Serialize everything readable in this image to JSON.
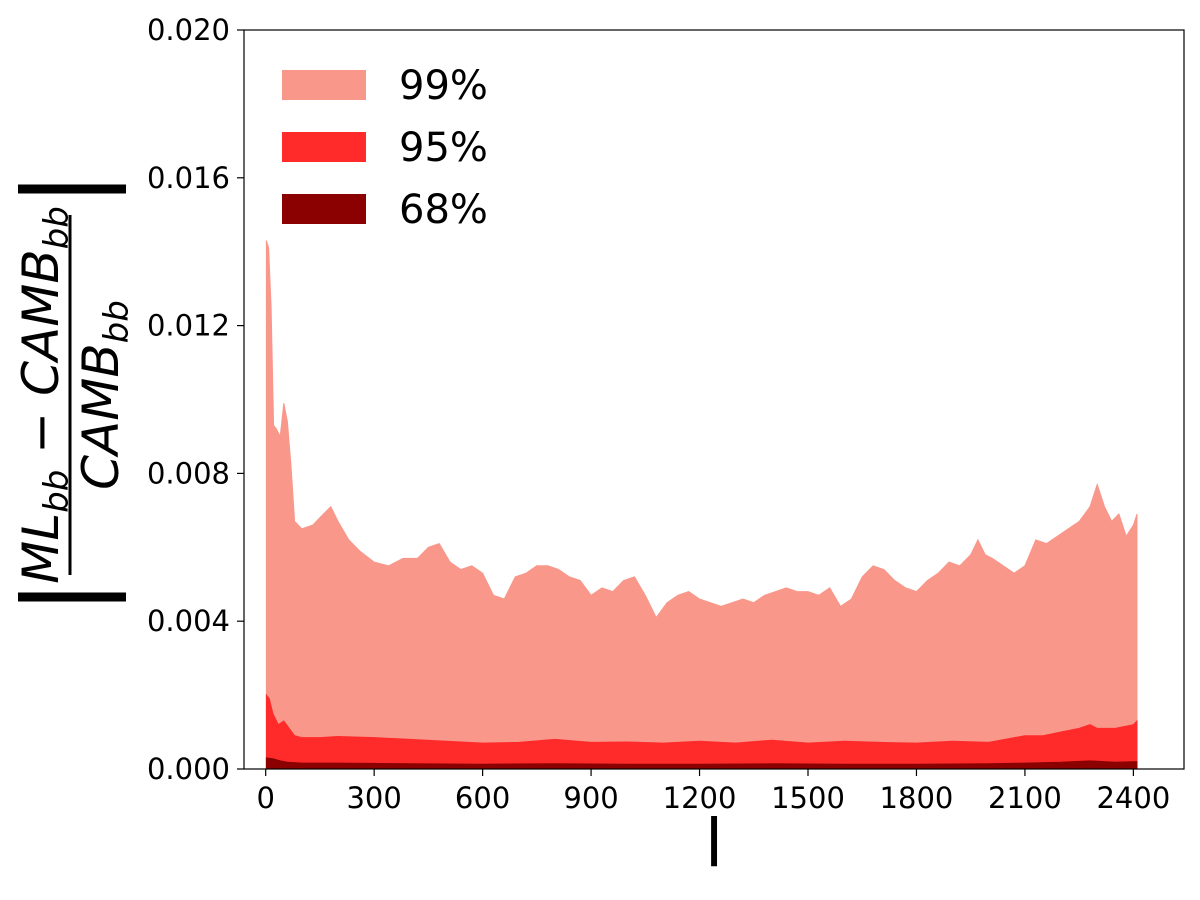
{
  "chart_data": {
    "type": "area",
    "xlabel": "l",
    "ylabel": {
      "numerator": "ML",
      "numerator_sub": "bb",
      "minus": "−",
      "numerator2": "CAMB",
      "numerator2_sub": "bb",
      "denominator": "CAMB",
      "denominator_sub": "bb"
    },
    "xlim": [
      -60,
      2540
    ],
    "ylim": [
      0,
      0.02
    ],
    "xticks": [
      0,
      300,
      600,
      900,
      1200,
      1500,
      1800,
      2100,
      2400
    ],
    "xtick_labels": [
      "0",
      "300",
      "600",
      "900",
      "1200",
      "1500",
      "1800",
      "2100",
      "2400"
    ],
    "yticks": [
      0.0,
      0.004,
      0.008,
      0.012,
      0.016,
      0.02
    ],
    "ytick_labels": [
      "0.000",
      "0.004",
      "0.008",
      "0.012",
      "0.016",
      "0.020"
    ],
    "grid": false,
    "legend_position": "upper-left",
    "series": [
      {
        "name": "99%",
        "color": "#f8978a",
        "x": [
          2,
          8,
          15,
          22,
          30,
          40,
          50,
          60,
          70,
          80,
          100,
          130,
          160,
          180,
          200,
          230,
          260,
          300,
          340,
          380,
          420,
          450,
          480,
          510,
          540,
          570,
          600,
          630,
          660,
          690,
          720,
          750,
          780,
          810,
          840,
          870,
          900,
          930,
          960,
          990,
          1020,
          1050,
          1080,
          1110,
          1140,
          1170,
          1200,
          1230,
          1260,
          1290,
          1320,
          1350,
          1380,
          1410,
          1440,
          1470,
          1500,
          1530,
          1560,
          1590,
          1620,
          1650,
          1680,
          1710,
          1740,
          1770,
          1800,
          1830,
          1860,
          1890,
          1920,
          1950,
          1970,
          1990,
          2010,
          2040,
          2070,
          2100,
          2130,
          2160,
          2190,
          2220,
          2250,
          2280,
          2300,
          2320,
          2340,
          2360,
          2380,
          2400,
          2410
        ],
        "y": [
          0.0143,
          0.0141,
          0.0125,
          0.0093,
          0.0092,
          0.009,
          0.0099,
          0.0094,
          0.0082,
          0.0067,
          0.0065,
          0.0066,
          0.0069,
          0.0071,
          0.0067,
          0.0062,
          0.0059,
          0.0056,
          0.0055,
          0.0057,
          0.0057,
          0.006,
          0.0061,
          0.0056,
          0.0054,
          0.0055,
          0.0053,
          0.0047,
          0.0046,
          0.0052,
          0.0053,
          0.0055,
          0.0055,
          0.0054,
          0.0052,
          0.0051,
          0.0047,
          0.0049,
          0.0048,
          0.0051,
          0.0052,
          0.0047,
          0.0041,
          0.0045,
          0.0047,
          0.0048,
          0.0046,
          0.0045,
          0.0044,
          0.0045,
          0.0046,
          0.0045,
          0.0047,
          0.0048,
          0.0049,
          0.0048,
          0.0048,
          0.0047,
          0.0049,
          0.0044,
          0.0046,
          0.0052,
          0.0055,
          0.0054,
          0.0051,
          0.0049,
          0.0048,
          0.0051,
          0.0053,
          0.0056,
          0.0055,
          0.0058,
          0.0062,
          0.0058,
          0.0057,
          0.0055,
          0.0053,
          0.0055,
          0.0062,
          0.0061,
          0.0063,
          0.0065,
          0.0067,
          0.0071,
          0.0077,
          0.0071,
          0.0067,
          0.0069,
          0.0063,
          0.0066,
          0.0069
        ]
      },
      {
        "name": "95%",
        "color": "#ff2a2a",
        "x": [
          2,
          10,
          20,
          35,
          50,
          65,
          80,
          100,
          150,
          200,
          300,
          400,
          500,
          600,
          700,
          800,
          900,
          1000,
          1100,
          1200,
          1300,
          1400,
          1500,
          1600,
          1700,
          1800,
          1900,
          2000,
          2100,
          2150,
          2200,
          2250,
          2280,
          2300,
          2350,
          2400,
          2410
        ],
        "y": [
          0.002,
          0.0019,
          0.0015,
          0.0012,
          0.0013,
          0.0011,
          0.0009,
          0.00085,
          0.00085,
          0.00088,
          0.00085,
          0.0008,
          0.00075,
          0.0007,
          0.00072,
          0.0008,
          0.00072,
          0.00073,
          0.0007,
          0.00075,
          0.0007,
          0.00078,
          0.0007,
          0.00075,
          0.00072,
          0.0007,
          0.00075,
          0.00072,
          0.0009,
          0.0009,
          0.001,
          0.0011,
          0.0012,
          0.0011,
          0.0011,
          0.0012,
          0.0013
        ]
      },
      {
        "name": "68%",
        "color": "#8b0000",
        "x": [
          2,
          20,
          40,
          60,
          100,
          200,
          400,
          600,
          800,
          1000,
          1200,
          1400,
          1600,
          1800,
          2000,
          2100,
          2200,
          2280,
          2350,
          2410
        ],
        "y": [
          0.0003,
          0.00028,
          0.00022,
          0.00018,
          0.00016,
          0.00016,
          0.00014,
          0.00013,
          0.00014,
          0.00013,
          0.00013,
          0.00014,
          0.00013,
          0.00013,
          0.00014,
          0.00016,
          0.00018,
          0.00022,
          0.00018,
          0.0002
        ]
      }
    ]
  }
}
